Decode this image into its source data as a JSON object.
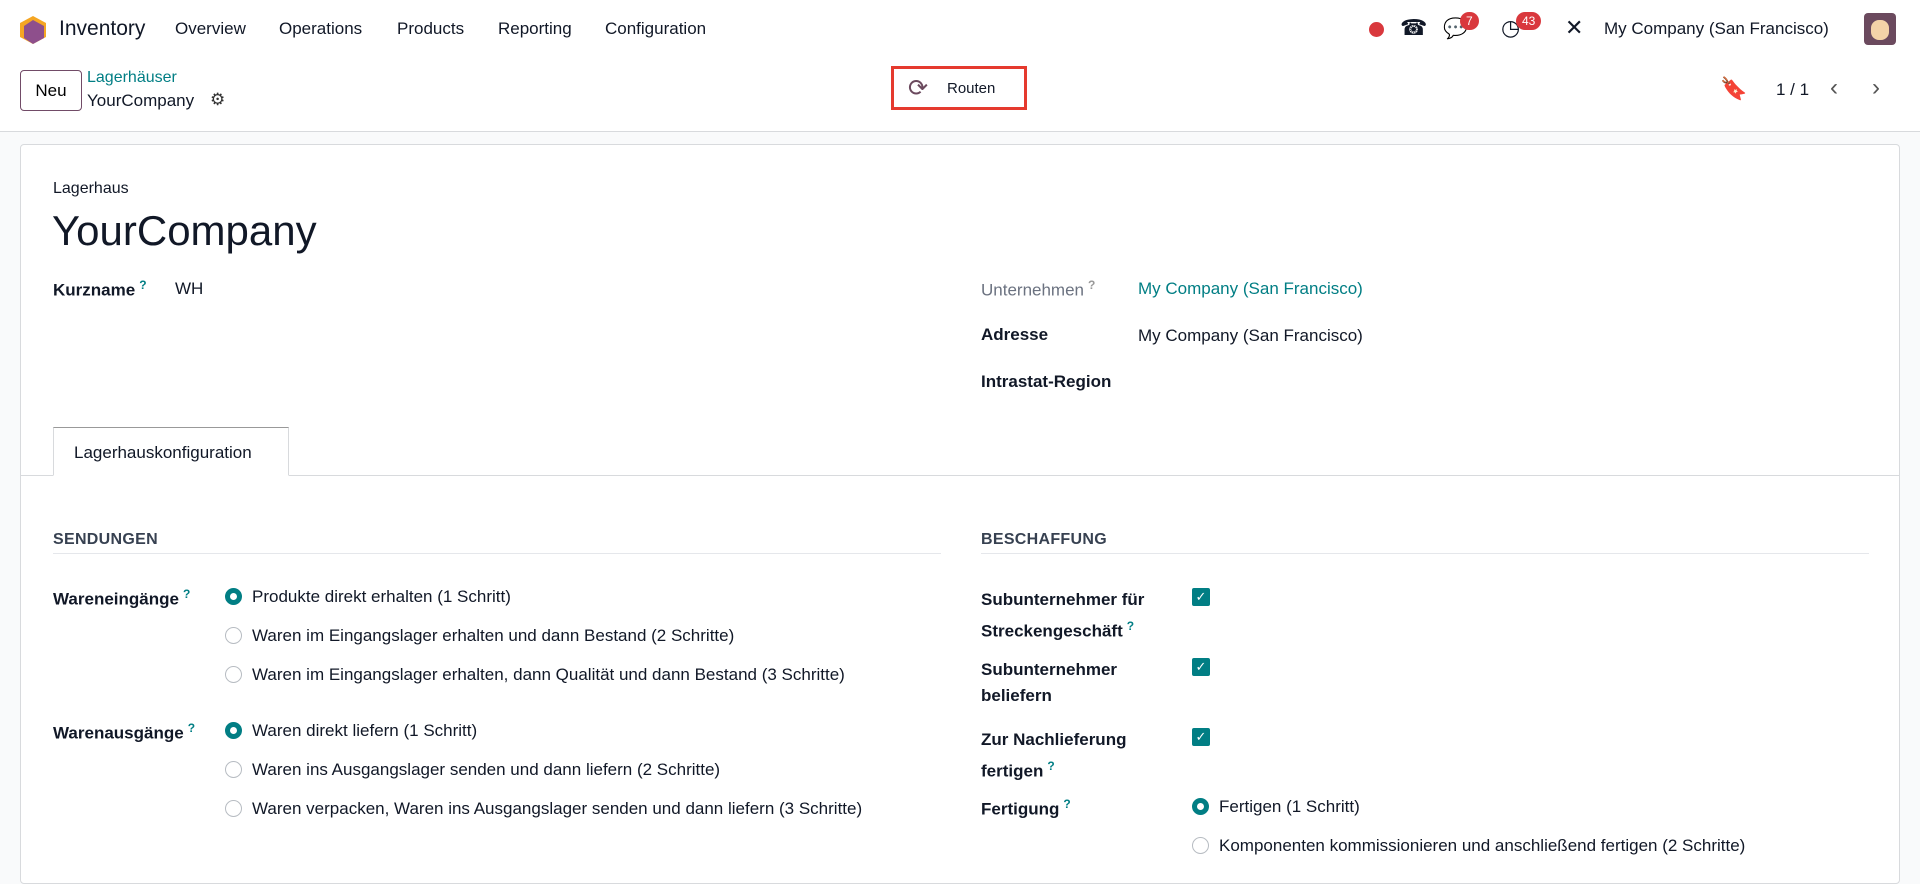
{
  "navbar": {
    "app_name": "Inventory",
    "menu": [
      "Overview",
      "Operations",
      "Products",
      "Reporting",
      "Configuration"
    ],
    "chat_count": "7",
    "activity_count": "43",
    "company": "My Company (San Francisco)"
  },
  "control_panel": {
    "new_label": "Neu",
    "breadcrumb_parent": "Lagerhäuser",
    "breadcrumb_current": "YourCompany",
    "routes_label": "Routen",
    "pager": "1 / 1"
  },
  "form": {
    "title_label": "Lagerhaus",
    "title": "YourCompany",
    "short_name_label": "Kurzname",
    "short_name": "WH",
    "company_label": "Unternehmen",
    "company": "My Company (San Francisco)",
    "address_label": "Adresse",
    "address": "My Company (San Francisco)",
    "intrastat_label": "Intrastat-Region",
    "tab": "Lagerhauskonfiguration",
    "shipments": {
      "heading": "SENDUNGEN",
      "incoming_label": "Wareneingänge",
      "incoming_options": [
        "Produkte direkt erhalten (1 Schritt)",
        "Waren im Eingangslager erhalten und dann Bestand (2 Schritte)",
        "Waren im Eingangslager erhalten, dann Qualität und dann Bestand (3 Schritte)"
      ],
      "incoming_selected": 0,
      "outgoing_label": "Warenausgänge",
      "outgoing_options": [
        "Waren direkt liefern (1 Schritt)",
        "Waren ins Ausgangslager senden und dann liefern (2 Schritte)",
        "Waren verpacken, Waren ins Ausgangslager senden und dann liefern (3 Schritte)"
      ],
      "outgoing_selected": 0
    },
    "procurement": {
      "heading": "BESCHAFFUNG",
      "dropship_l1": "Subunternehmer für",
      "dropship_l2": "Streckengeschäft",
      "dropship_checked": true,
      "resupply_l1": "Subunternehmer",
      "resupply_l2": "beliefern",
      "resupply_checked": true,
      "mto_l1": "Zur Nachlieferung",
      "mto_l2": "fertigen",
      "mto_checked": true,
      "manufacture_label": "Fertigung",
      "manufacture_options": [
        "Fertigen (1 Schritt)",
        "Komponenten kommissionieren und anschließend fertigen (2 Schritte)"
      ],
      "manufacture_selected": 0
    }
  },
  "colors": {
    "accent": "#017e84",
    "badge": "#d9383d",
    "highlight": "#e53a2e"
  }
}
